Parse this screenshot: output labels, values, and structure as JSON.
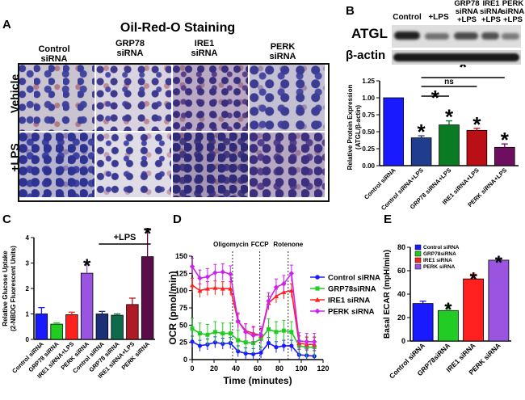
{
  "panels": {
    "a": "A",
    "b": "B",
    "c": "C",
    "d": "D",
    "e": "E"
  },
  "panel_a": {
    "title": "Oil-Red-O Staining",
    "columns": [
      "Control\nsiRNA",
      "GRP78\nsiRNA",
      "IRE1\nsiRNA",
      "PERK\nsiRNA"
    ],
    "rows": [
      "Vehicle",
      "+LPS"
    ]
  },
  "panel_b_blot": {
    "lanes": [
      "Control",
      "+LPS",
      "GRP78\nsiRNA\n+LPS",
      "IRE1\nsiRNA\n+LPS",
      "PERK\nsiRNA\n+LPS"
    ],
    "row_labels": [
      "ATGL",
      "β-actin"
    ]
  },
  "chart_data": [
    {
      "id": "b",
      "type": "bar",
      "title": "",
      "ylabel": "Relative Protein Expression (ATGL/β-actin)",
      "ylim": [
        0,
        1.25
      ],
      "yticks": [
        "0.00",
        "0.25",
        "0.50",
        "0.75",
        "1.00",
        "1.25"
      ],
      "categories": [
        "Control siRNA",
        "Control siRNA+LPS",
        "GRP78 siRNA+LPS",
        "IRE1 siRNA+LPS",
        "PERK siRNA+LPS"
      ],
      "values": [
        1.0,
        0.41,
        0.6,
        0.52,
        0.27
      ],
      "errors": [
        0,
        0.03,
        0.06,
        0.03,
        0.05
      ],
      "colors": [
        "#1a1aff",
        "#1f3c8f",
        "#0a7a23",
        "#bb0f16",
        "#6d0f5e"
      ],
      "annotations": {
        "star": "*",
        "ns": "ns"
      }
    },
    {
      "id": "c",
      "type": "bar",
      "ylabel": "Relative Glucose Uptake (2-NBDG Fluorescent Units)",
      "ylim": [
        0,
        4
      ],
      "yticks": [
        "0",
        "1",
        "2",
        "3",
        "4"
      ],
      "categories": [
        "Control siRNA",
        "GRP78 siRNA",
        "IRE1 siRNA+LPS",
        "PERK siRNA",
        "Control siRNA",
        "GRP78 siRNA",
        "IRE1 siRNA+LPS",
        "PERK siRNA"
      ],
      "values": [
        1.0,
        0.6,
        0.97,
        2.6,
        1.0,
        0.95,
        1.37,
        3.25
      ],
      "errors": [
        0.25,
        0.05,
        0.1,
        0.45,
        0.1,
        0.05,
        0.25,
        1.1
      ],
      "colors": [
        "#1a1aff",
        "#22cc22",
        "#ff2020",
        "#9955e0",
        "#1e2f7a",
        "#0d6a4a",
        "#b01a24",
        "#5a0d4a"
      ],
      "group_label": "+LPS",
      "annotations": {
        "star": "*"
      }
    },
    {
      "id": "d",
      "type": "line",
      "xlabel": "Time (minutes)",
      "ylabel": "OCR (pmol/min)",
      "xlim": [
        0,
        120
      ],
      "ylim": [
        0,
        150
      ],
      "xticks": [
        "0",
        "20",
        "40",
        "60",
        "80",
        "100",
        "120"
      ],
      "yticks": [
        "0",
        "25",
        "50",
        "75",
        "100",
        "125",
        "150"
      ],
      "x": [
        0,
        7,
        14,
        21,
        28,
        35,
        42,
        49,
        56,
        63,
        70,
        77,
        84,
        91,
        98,
        105,
        112
      ],
      "series": [
        {
          "name": "Control siRNA",
          "color": "#1a1aff",
          "marker": "circle",
          "values": [
            26,
            20,
            22,
            25,
            23,
            24,
            12,
            9,
            8,
            10,
            24,
            18,
            20,
            20,
            7,
            6,
            5
          ],
          "err": 8
        },
        {
          "name": "GRP78siRNA",
          "color": "#22cc22",
          "marker": "square",
          "values": [
            45,
            38,
            36,
            40,
            38,
            38,
            28,
            25,
            24,
            30,
            44,
            40,
            42,
            40,
            20,
            18,
            18
          ],
          "err": 15
        },
        {
          "name": "IRE1 siRNA",
          "color": "#ff2020",
          "marker": "triangle",
          "values": [
            108,
            100,
            103,
            104,
            103,
            103,
            56,
            42,
            38,
            35,
            82,
            92,
            98,
            100,
            24,
            22,
            22
          ],
          "err": 10
        },
        {
          "name": "PERK siRNA",
          "color": "#cc22ee",
          "marker": "diamond",
          "values": [
            135,
            118,
            120,
            126,
            127,
            124,
            56,
            40,
            35,
            36,
            85,
            105,
            110,
            125,
            27,
            26,
            26
          ],
          "err": 12
        }
      ],
      "vlines": [
        {
          "x": 37,
          "label": "Oligomycin"
        },
        {
          "x": 62,
          "label": "FCCP"
        },
        {
          "x": 88,
          "label": "Rotenone"
        }
      ]
    },
    {
      "id": "e",
      "type": "bar",
      "ylabel": "Basal ECAR (mpH/min)",
      "ylim": [
        0,
        80
      ],
      "yticks": [
        "0",
        "20",
        "40",
        "60",
        "80"
      ],
      "categories": [
        "Control siRNA",
        "GRP78siRNA",
        "IRE1 siRNA",
        "PERK siRNA"
      ],
      "values": [
        32,
        26,
        53,
        69
      ],
      "errors": [
        2,
        5,
        4,
        2
      ],
      "colors": [
        "#1a1aff",
        "#22cc22",
        "#ff2020",
        "#9955e0"
      ],
      "legend": [
        "Control siRNA",
        "GRP78siRNA",
        "IRE1 siRNA",
        "PERK siRNA"
      ],
      "annotations": {
        "star": "*"
      }
    }
  ]
}
